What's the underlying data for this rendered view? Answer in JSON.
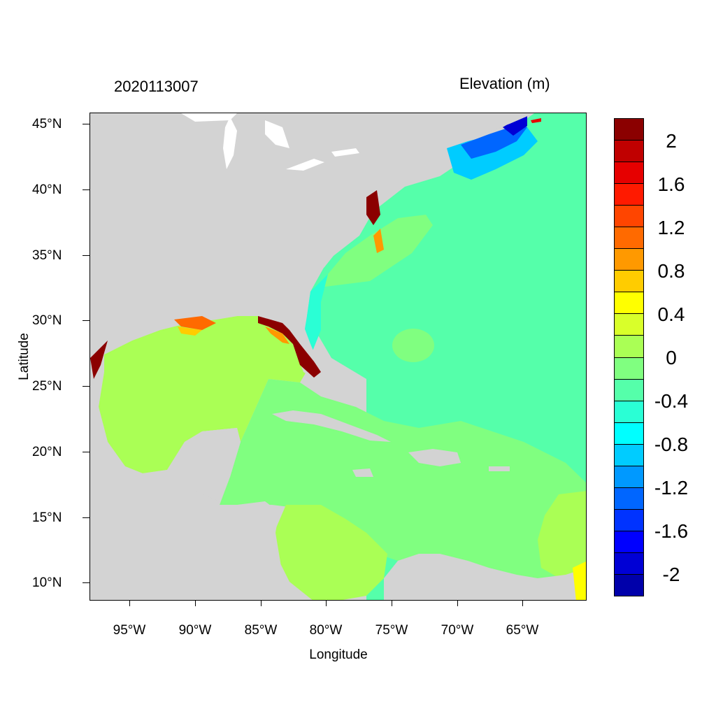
{
  "map": {
    "timestamp": "2020113007",
    "variable_label": "Elevation (m)",
    "x_axis_label": "Longitude",
    "y_axis_label": "Latitude",
    "lon_range": [
      -98,
      -60.2
    ],
    "lat_range": [
      8.5,
      45.8
    ],
    "x_ticks": [
      {
        "value": -95,
        "label": "95°W"
      },
      {
        "value": -90,
        "label": "90°W"
      },
      {
        "value": -85,
        "label": "85°W"
      },
      {
        "value": -80,
        "label": "80°W"
      },
      {
        "value": -75,
        "label": "75°W"
      },
      {
        "value": -70,
        "label": "70°W"
      },
      {
        "value": -65,
        "label": "65°W"
      }
    ],
    "y_ticks": [
      {
        "value": 45,
        "label": "45°N"
      },
      {
        "value": 40,
        "label": "40°N"
      },
      {
        "value": 35,
        "label": "35°N"
      },
      {
        "value": 30,
        "label": "30°N"
      },
      {
        "value": 25,
        "label": "25°N"
      },
      {
        "value": 20,
        "label": "20°N"
      },
      {
        "value": 15,
        "label": "15°N"
      },
      {
        "value": 10,
        "label": "10°N"
      }
    ],
    "land_color": "#d3d3d3",
    "lake_color": "#ffffff"
  },
  "colorbar": {
    "colors_top_to_bottom": [
      "#8b0000",
      "#c00000",
      "#e60000",
      "#ff1a00",
      "#ff4500",
      "#ff6a00",
      "#ff9900",
      "#ffcc00",
      "#ffff00",
      "#d9ff2a",
      "#aaff55",
      "#80ff80",
      "#55ffaa",
      "#2affd5",
      "#00ffff",
      "#00ccff",
      "#0099ff",
      "#0066ff",
      "#0033ff",
      "#0000ff",
      "#0000d5",
      "#0000aa"
    ],
    "labels": [
      {
        "text": "2",
        "level": 2.0
      },
      {
        "text": "1.6",
        "level": 1.6
      },
      {
        "text": "1.2",
        "level": 1.2
      },
      {
        "text": "0.8",
        "level": 0.8
      },
      {
        "text": "0.4",
        "level": 0.4
      },
      {
        "text": "0",
        "level": 0.0
      },
      {
        "text": "-0.4",
        "level": -0.4
      },
      {
        "text": "-0.8",
        "level": -0.8
      },
      {
        "text": "-1.2",
        "level": -1.2
      },
      {
        "text": "-1.6",
        "level": -1.6
      },
      {
        "text": "-2",
        "level": -2.0
      }
    ]
  }
}
